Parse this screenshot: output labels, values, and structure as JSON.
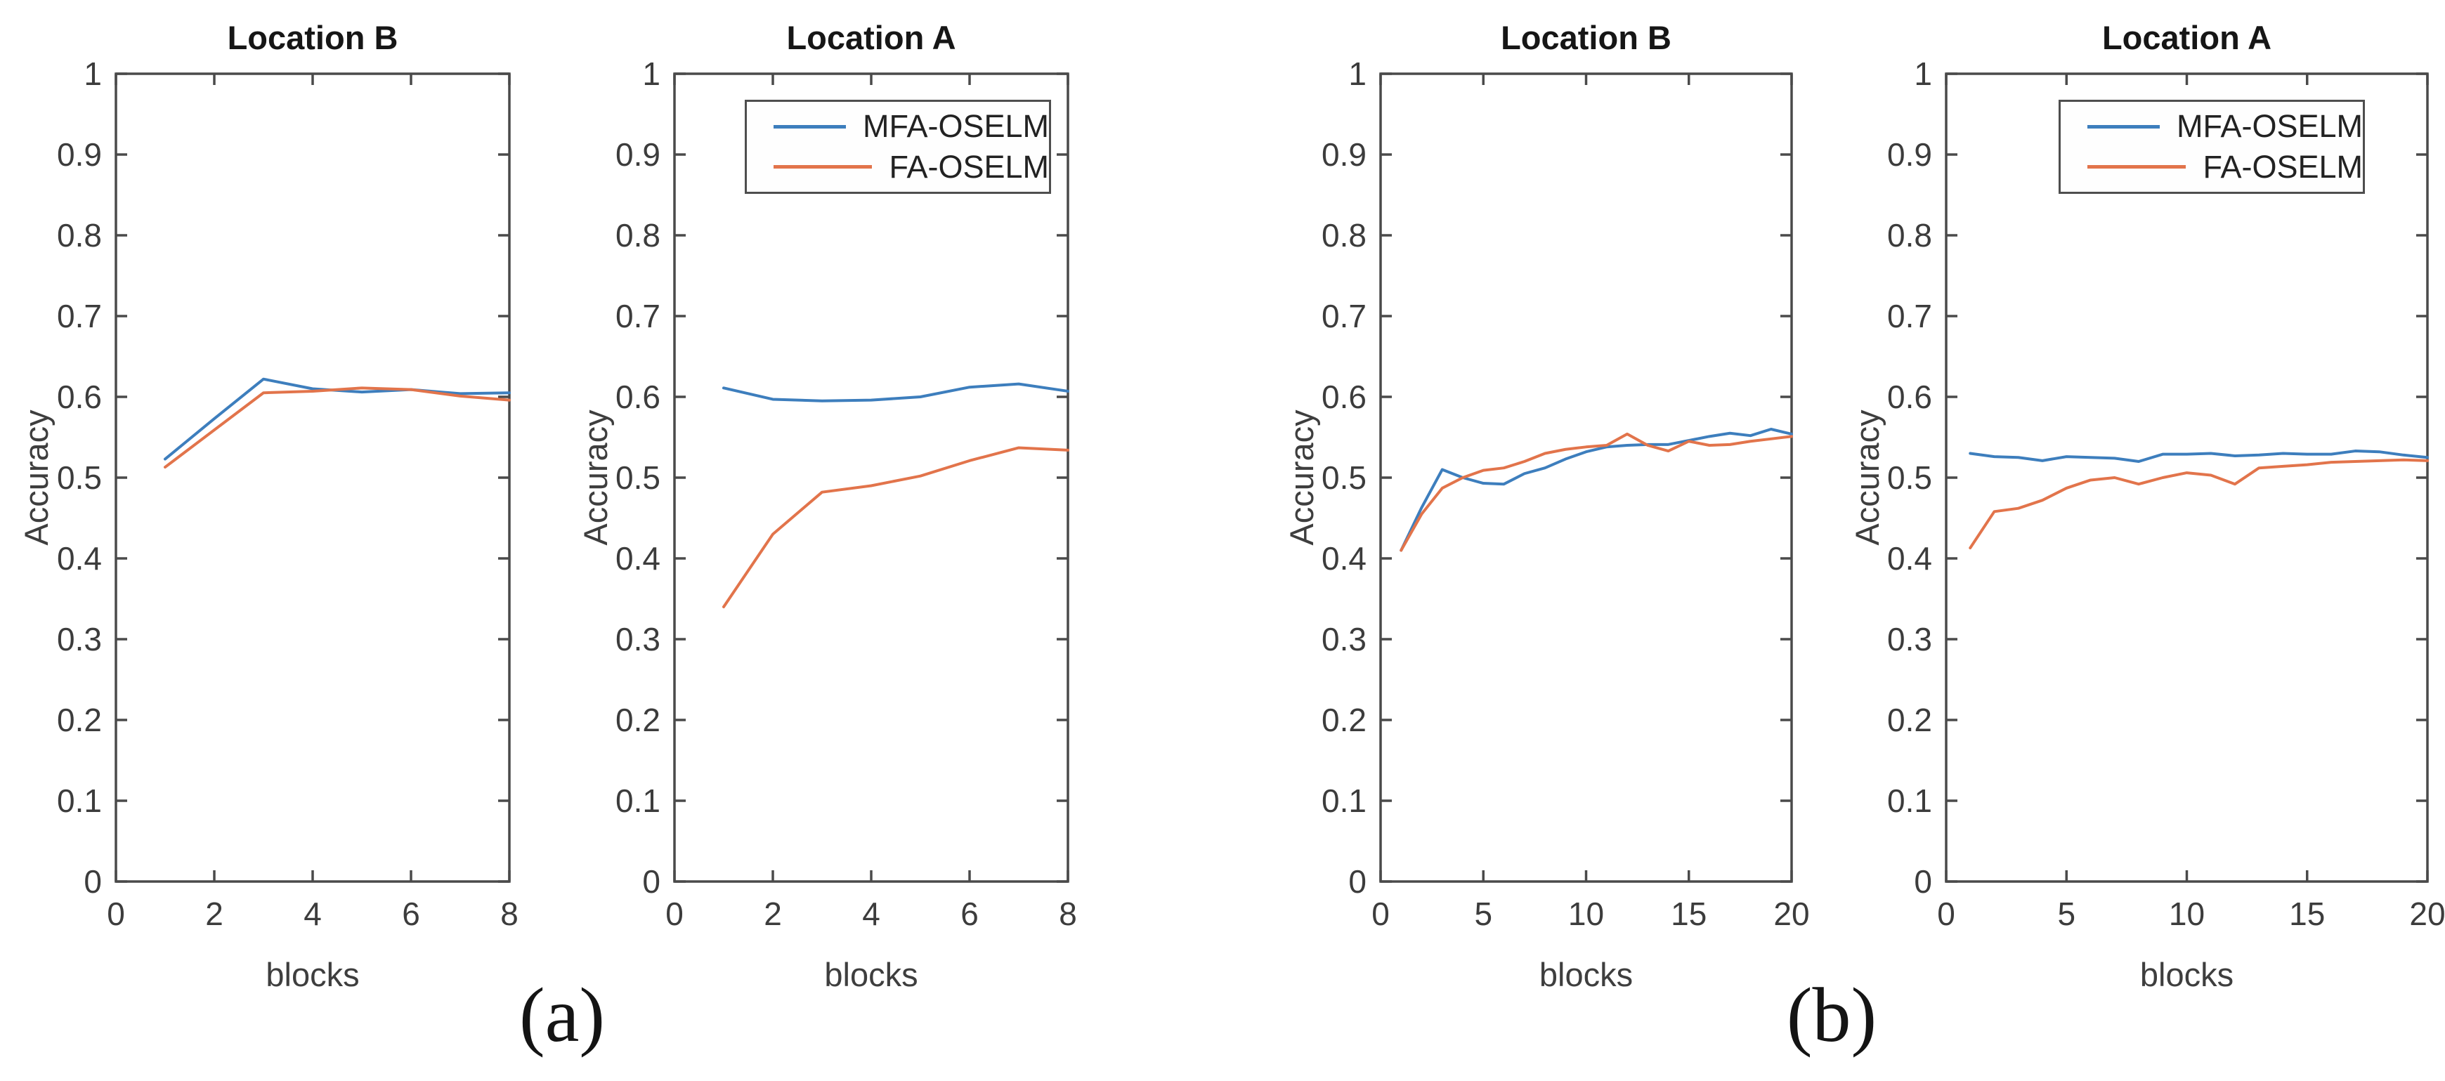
{
  "figure": {
    "captions": [
      {
        "label": "(a)"
      },
      {
        "label": "(b)"
      }
    ],
    "axis_color": "#4a4a4a",
    "series_colors": {
      "mfa_oselm": "#3d7ebd",
      "fa_oselm": "#e2744b"
    }
  },
  "chart_data": [
    {
      "type": "line",
      "title": "Location B",
      "xlabel": "blocks",
      "ylabel": "Accuracy",
      "xlim": [
        0,
        8
      ],
      "ylim": [
        0,
        1
      ],
      "xticks": [
        "0",
        "2",
        "4",
        "6",
        "8"
      ],
      "yticks": [
        "0",
        "0.1",
        "0.2",
        "0.3",
        "0.4",
        "0.5",
        "0.6",
        "0.7",
        "0.8",
        "0.9",
        "1"
      ],
      "grid": false,
      "legend_position": "none",
      "x": [
        1,
        2,
        3,
        4,
        5,
        6,
        7,
        8
      ],
      "series": [
        {
          "name": "MFA-OSELM",
          "color": "#3d7ebd",
          "values": [
            0.523,
            0.573,
            0.622,
            0.61,
            0.606,
            0.609,
            0.604,
            0.605
          ]
        },
        {
          "name": "FA-OSELM",
          "color": "#e2744b",
          "values": [
            0.513,
            0.559,
            0.605,
            0.607,
            0.611,
            0.609,
            0.601,
            0.596
          ]
        }
      ]
    },
    {
      "type": "line",
      "title": "Location A",
      "xlabel": "blocks",
      "ylabel": "Accuracy",
      "xlim": [
        0,
        8
      ],
      "ylim": [
        0,
        1
      ],
      "xticks": [
        "0",
        "2",
        "4",
        "6",
        "8"
      ],
      "yticks": [
        "0",
        "0.1",
        "0.2",
        "0.3",
        "0.4",
        "0.5",
        "0.6",
        "0.7",
        "0.8",
        "0.9",
        "1"
      ],
      "grid": false,
      "legend_position": "upper-center-inside",
      "x": [
        1,
        2,
        3,
        4,
        5,
        6,
        7,
        8
      ],
      "series": [
        {
          "name": "MFA-OSELM",
          "color": "#3d7ebd",
          "values": [
            0.611,
            0.597,
            0.595,
            0.596,
            0.6,
            0.612,
            0.616,
            0.607
          ]
        },
        {
          "name": "FA-OSELM",
          "color": "#e2744b",
          "values": [
            0.34,
            0.43,
            0.482,
            0.49,
            0.502,
            0.521,
            0.537,
            0.534
          ]
        }
      ]
    },
    {
      "type": "line",
      "title": "Location B",
      "xlabel": "blocks",
      "ylabel": "Accuracy",
      "xlim": [
        0,
        20
      ],
      "ylim": [
        0,
        1
      ],
      "xticks": [
        "0",
        "5",
        "10",
        "15",
        "20"
      ],
      "yticks": [
        "0",
        "0.1",
        "0.2",
        "0.3",
        "0.4",
        "0.5",
        "0.6",
        "0.7",
        "0.8",
        "0.9",
        "1"
      ],
      "grid": false,
      "legend_position": "none",
      "x": [
        1,
        2,
        3,
        4,
        5,
        6,
        7,
        8,
        9,
        10,
        11,
        12,
        13,
        14,
        15,
        16,
        17,
        18,
        19,
        20
      ],
      "series": [
        {
          "name": "MFA-OSELM",
          "color": "#3d7ebd",
          "values": [
            0.41,
            0.463,
            0.51,
            0.5,
            0.493,
            0.492,
            0.505,
            0.512,
            0.523,
            0.532,
            0.538,
            0.54,
            0.541,
            0.541,
            0.546,
            0.551,
            0.555,
            0.552,
            0.56,
            0.554
          ]
        },
        {
          "name": "FA-OSELM",
          "color": "#e2744b",
          "values": [
            0.41,
            0.455,
            0.487,
            0.5,
            0.509,
            0.512,
            0.52,
            0.53,
            0.535,
            0.538,
            0.54,
            0.554,
            0.54,
            0.533,
            0.545,
            0.54,
            0.541,
            0.545,
            0.548,
            0.551
          ]
        }
      ]
    },
    {
      "type": "line",
      "title": "Location A",
      "xlabel": "blocks",
      "ylabel": "Accuracy",
      "xlim": [
        0,
        20
      ],
      "ylim": [
        0,
        1
      ],
      "xticks": [
        "0",
        "5",
        "10",
        "15",
        "20"
      ],
      "yticks": [
        "0",
        "0.1",
        "0.2",
        "0.3",
        "0.4",
        "0.5",
        "0.6",
        "0.7",
        "0.8",
        "0.9",
        "1"
      ],
      "grid": false,
      "legend_position": "upper-center-inside",
      "x": [
        1,
        2,
        3,
        4,
        5,
        6,
        7,
        8,
        9,
        10,
        11,
        12,
        13,
        14,
        15,
        16,
        17,
        18,
        19,
        20
      ],
      "series": [
        {
          "name": "MFA-OSELM",
          "color": "#3d7ebd",
          "values": [
            0.53,
            0.526,
            0.525,
            0.521,
            0.526,
            0.525,
            0.524,
            0.52,
            0.529,
            0.529,
            0.53,
            0.527,
            0.528,
            0.53,
            0.529,
            0.529,
            0.533,
            0.532,
            0.528,
            0.525
          ]
        },
        {
          "name": "FA-OSELM",
          "color": "#e2744b",
          "values": [
            0.413,
            0.458,
            0.462,
            0.472,
            0.487,
            0.497,
            0.5,
            0.492,
            0.5,
            0.506,
            0.503,
            0.492,
            0.512,
            0.514,
            0.516,
            0.519,
            0.52,
            0.521,
            0.522,
            0.521
          ]
        }
      ]
    }
  ]
}
